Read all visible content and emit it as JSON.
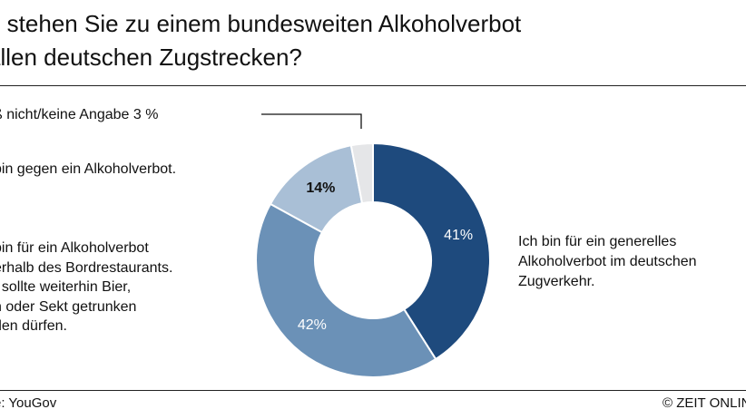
{
  "chart_data": {
    "type": "pie",
    "donut": true,
    "title_lines": [
      "e stehen Sie zu einem bundesweiten Alkoholverbot",
      "allen deutschen Zugstrecken?"
    ],
    "slices": [
      {
        "value": 41,
        "data_label": "41%",
        "color": "#1e4a7d",
        "label_color": "#ffffff",
        "category_lines": [
          "Ich bin für ein generelles",
          "Alkoholverbot im deutschen",
          "Zugverkehr."
        ]
      },
      {
        "value": 42,
        "data_label": "42%",
        "color": "#6b91b7",
        "label_color": "#ffffff",
        "category_lines": [
          "bin für ein Alkoholverbot",
          "erhalb des Bordrestaurants.",
          "t sollte weiterhin Bier,",
          "n oder Sekt getrunken",
          "den dürfen."
        ]
      },
      {
        "value": 14,
        "data_label": "14%",
        "color": "#a9bfd6",
        "label_color": "#111111",
        "category_lines": [
          "bin gegen ein Alkoholverbot."
        ]
      },
      {
        "value": 3,
        "data_label": "",
        "color": "#e5e6e8",
        "label_color": "#111111",
        "category_lines": [
          "ß nicht/keine Angabe 3 %"
        ]
      }
    ]
  },
  "footer": {
    "source": "e: YouGov",
    "credit": "© ZEIT ONLINE"
  }
}
